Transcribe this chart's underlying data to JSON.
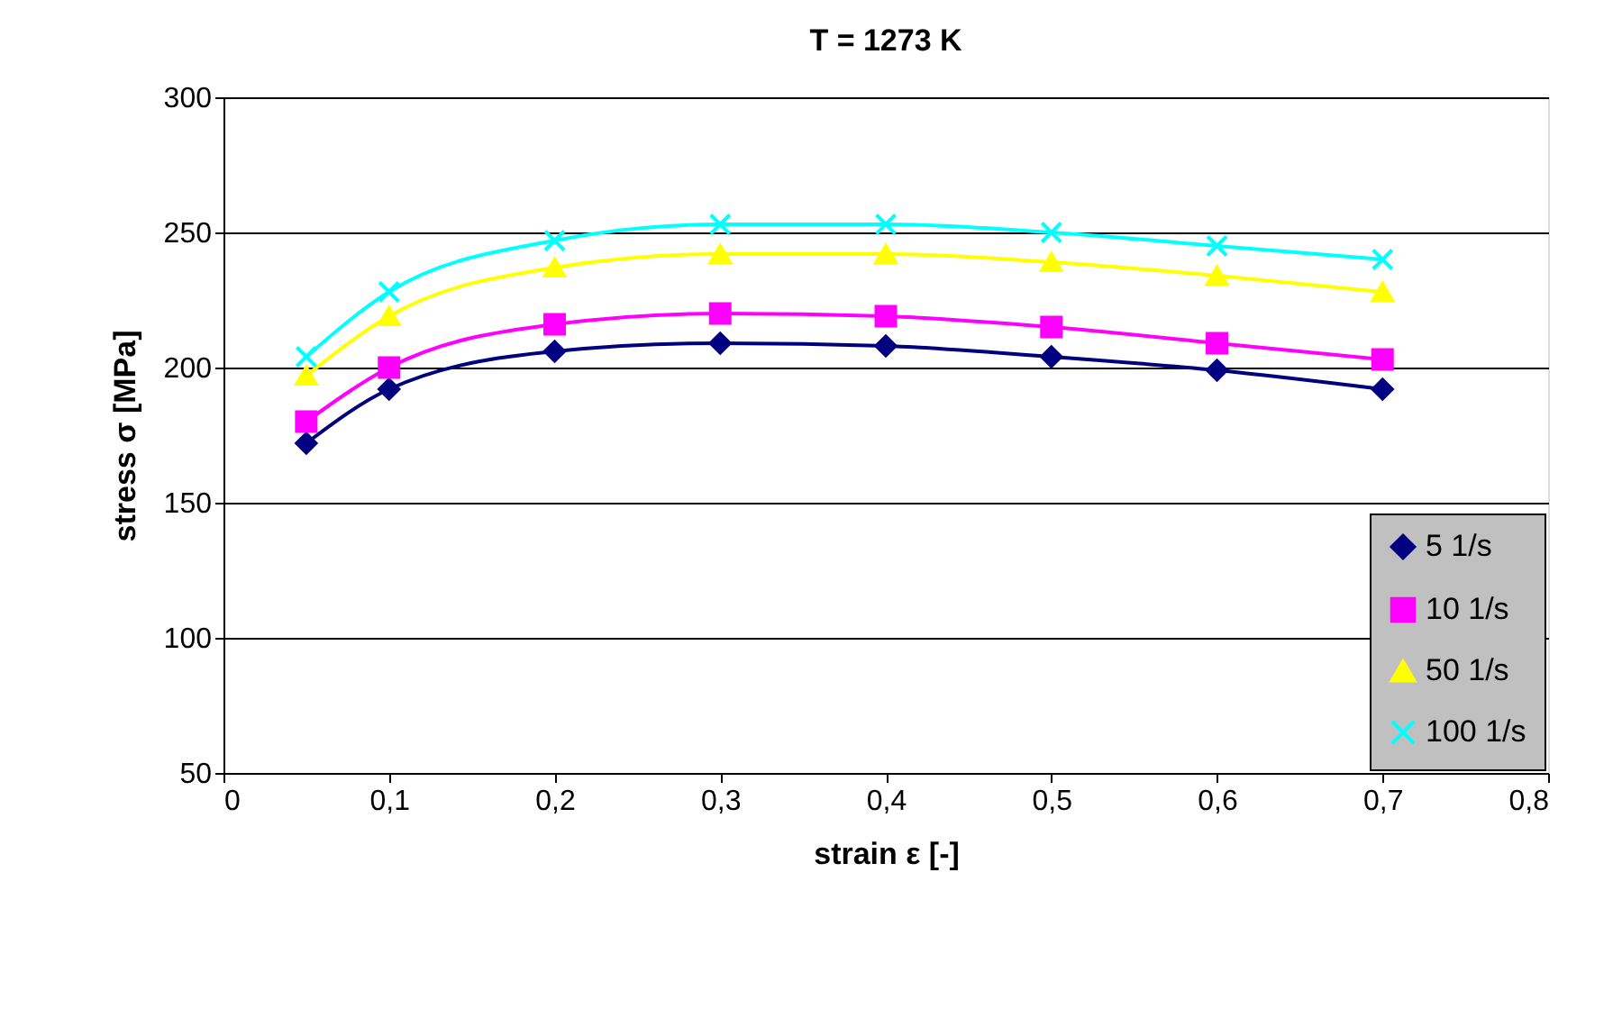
{
  "chart_data": {
    "type": "line",
    "title": "T = 1273 K",
    "xlabel": "strain ε [-]",
    "ylabel": "stress σ [MPa]",
    "x": [
      0.05,
      0.1,
      0.2,
      0.3,
      0.4,
      0.5,
      0.6,
      0.7
    ],
    "series": [
      {
        "name": "5 1/s",
        "color": "#000080",
        "marker": "diamond",
        "values": [
          172,
          192,
          206,
          209,
          208,
          204,
          199,
          192
        ]
      },
      {
        "name": "10 1/s",
        "color": "#ff00ff",
        "marker": "square",
        "values": [
          180,
          200,
          216,
          220,
          219,
          215,
          209,
          203
        ]
      },
      {
        "name": "50 1/s",
        "color": "#ffff00",
        "marker": "triangle",
        "values": [
          197,
          219,
          237,
          242,
          242,
          239,
          234,
          228
        ]
      },
      {
        "name": "100 1/s",
        "color": "#00ffff",
        "marker": "cross",
        "values": [
          204,
          228,
          247,
          253,
          253,
          250,
          245,
          240
        ]
      }
    ],
    "xlim": [
      0,
      0.8
    ],
    "xticks": [
      0,
      {
        "value": 0.1,
        "label": "0,1"
      },
      {
        "value": 0.2,
        "label": "0,2"
      },
      {
        "value": 0.3,
        "label": "0,3"
      },
      {
        "value": 0.4,
        "label": "0,4"
      },
      {
        "value": 0.5,
        "label": "0,5"
      },
      {
        "value": 0.6,
        "label": "0,6"
      },
      {
        "value": 0.7,
        "label": "0,7"
      },
      {
        "value": 0.8,
        "label": "0,8"
      }
    ],
    "ylim": [
      50,
      300
    ],
    "yticks": [
      50,
      100,
      150,
      200,
      250,
      300
    ],
    "grid": "y",
    "legend": "bottom right",
    "line_style": "solid"
  }
}
